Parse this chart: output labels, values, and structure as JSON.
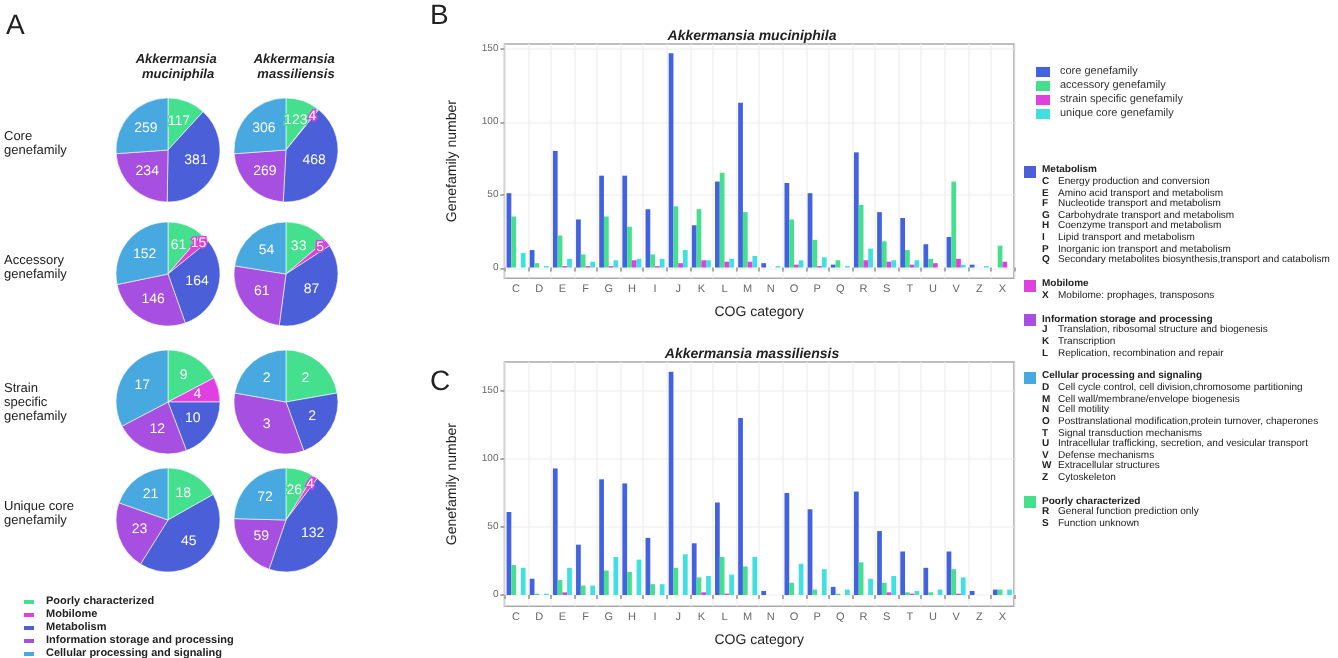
{
  "chart_data": [
    {
      "type": "pie",
      "title": "Akkermansia muciniphila",
      "annotations": [
        "A",
        "Core genefamily"
      ],
      "categories": [
        null,
        null,
        null,
        null,
        null
      ],
      "values": [
        117,
        null,
        381,
        234,
        259
      ],
      "colors": [
        "#44e08e",
        null,
        "#4a5fd8",
        "#a64fe0",
        "#48a8e0"
      ],
      "data_labels": true
    },
    {
      "type": "pie",
      "title": "Akkermansia massiliensis",
      "categories": [
        null,
        null,
        null,
        null,
        null
      ],
      "values": [
        123,
        4,
        468,
        269,
        306
      ],
      "colors": [
        "#44e08e",
        "#e040e0",
        "#4a5fd8",
        "#a64fe0",
        "#48a8e0"
      ],
      "data_labels": true
    },
    {
      "type": "pie",
      "annotations": [
        "Accessory genefamily"
      ],
      "categories": [
        null,
        null,
        null,
        null,
        null
      ],
      "values": [
        61,
        15,
        164,
        146,
        152
      ],
      "colors": [
        "#44e08e",
        "#e040e0",
        "#4a5fd8",
        "#a64fe0",
        "#48a8e0"
      ],
      "data_labels": true
    },
    {
      "type": "pie",
      "categories": [
        null,
        null,
        null,
        null,
        null
      ],
      "values": [
        33,
        5,
        87,
        61,
        54
      ],
      "colors": [
        "#44e08e",
        "#e040e0",
        "#4a5fd8",
        "#a64fe0",
        "#48a8e0"
      ],
      "data_labels": true
    },
    {
      "type": "pie",
      "annotations": [
        "Strain specific genefamily"
      ],
      "categories": [
        null,
        null,
        null,
        null,
        null
      ],
      "values": [
        9,
        4,
        10,
        12,
        17
      ],
      "colors": [
        "#44e08e",
        "#e040e0",
        "#4a5fd8",
        "#a64fe0",
        "#48a8e0"
      ],
      "data_labels": true
    },
    {
      "type": "pie",
      "categories": [
        null,
        null,
        null,
        null,
        null
      ],
      "values": [
        2,
        null,
        2,
        3,
        2
      ],
      "colors": [
        "#44e08e",
        null,
        "#4a5fd8",
        "#a64fe0",
        "#48a8e0"
      ],
      "data_labels": true
    },
    {
      "type": "pie",
      "annotations": [
        "Unique core genefamily"
      ],
      "categories": [
        null,
        null,
        null,
        null,
        null
      ],
      "values": [
        18,
        null,
        45,
        23,
        21
      ],
      "colors": [
        "#44e08e",
        null,
        "#4a5fd8",
        "#a64fe0",
        "#48a8e0"
      ],
      "data_labels": true
    },
    {
      "type": "pie",
      "categories": [
        "Poorly characterized",
        "Mobilome",
        "Metabolism",
        "Information storage and processing",
        "Cellular processing and signaling"
      ],
      "values": [
        26,
        4,
        132,
        59,
        72
      ],
      "colors": [
        "#44e08e",
        "#e040e0",
        "#4a5fd8",
        "#a64fe0",
        "#48a8e0"
      ],
      "data_labels": true,
      "legend": "bottom left"
    },
    {
      "type": "bar",
      "title": "Akkermansia muciniphila",
      "annotations": [
        "B"
      ],
      "xlabel": "COG category",
      "ylabel": "Genefamily number",
      "categories": [
        "C",
        "D",
        "E",
        "F",
        "G",
        "H",
        "I",
        "J",
        "K",
        "L",
        "M",
        "N",
        "O",
        "P",
        "Q",
        "R",
        "S",
        "T",
        "U",
        "V",
        "Z",
        "X"
      ],
      "series": [
        {
          "name": "core genefamily",
          "color": "#4262e0",
          "values": [
            51,
            12,
            80,
            33,
            63,
            63,
            40,
            147,
            29,
            59,
            113,
            3,
            58,
            51,
            2,
            79,
            38,
            34,
            16,
            21,
            2,
            0
          ]
        },
        {
          "name": "accessory genefamily",
          "color": "#44e08e",
          "values": [
            35,
            3,
            22,
            9,
            35,
            28,
            9,
            42,
            40,
            65,
            38,
            0,
            33,
            19,
            5,
            43,
            18,
            12,
            6,
            59,
            0,
            15
          ]
        },
        {
          "name": "strain specific genefamily",
          "color": "#e040e0",
          "values": [
            0,
            0,
            1,
            1,
            1,
            5,
            1,
            3,
            5,
            4,
            4,
            0,
            2,
            1,
            0,
            5,
            4,
            2,
            3,
            6,
            0,
            4
          ]
        },
        {
          "name": "unique core genefamily",
          "color": "#40e0e0",
          "values": [
            10,
            1,
            6,
            4,
            5,
            6,
            6,
            12,
            5,
            6,
            8,
            1,
            5,
            7,
            1,
            13,
            5,
            5,
            0,
            2,
            1,
            0
          ]
        }
      ],
      "ylim": [
        -7.3,
        153.3
      ],
      "yticks": [
        0,
        50,
        100,
        150
      ],
      "grid": true,
      "legend": "right"
    },
    {
      "type": "bar",
      "title": "Akkermansia massiliensis",
      "annotations": [
        "C"
      ],
      "xlabel": "COG category",
      "ylabel": "Genefamily number",
      "categories": [
        "C",
        "D",
        "E",
        "F",
        "G",
        "H",
        "I",
        "J",
        "K",
        "L",
        "M",
        "N",
        "O",
        "P",
        "Q",
        "R",
        "S",
        "T",
        "U",
        "V",
        "Z",
        "X"
      ],
      "series": [
        {
          "name": "core genefamily",
          "color": "#4262e0",
          "values": [
            61,
            12,
            93,
            37,
            85,
            82,
            42,
            164,
            38,
            68,
            130,
            3,
            75,
            63,
            6,
            76,
            47,
            32,
            20,
            32,
            3,
            4
          ]
        },
        {
          "name": "accessory genefamily",
          "color": "#44e08e",
          "values": [
            22,
            1,
            11,
            7,
            18,
            17,
            8,
            20,
            13,
            28,
            21,
            0,
            9,
            4,
            1,
            24,
            9,
            2,
            2,
            19,
            0,
            4
          ]
        },
        {
          "name": "strain specific genefamily",
          "color": "#e040e0",
          "values": [
            0,
            0,
            2,
            0,
            0,
            0,
            0,
            0,
            2,
            1,
            0,
            0,
            0,
            0,
            0,
            0,
            2,
            1,
            0,
            1,
            0,
            0
          ]
        },
        {
          "name": "unique core genefamily",
          "color": "#40e0e0",
          "values": [
            20,
            1,
            20,
            7,
            28,
            26,
            8,
            30,
            14,
            15,
            28,
            0,
            23,
            19,
            4,
            12,
            14,
            3,
            4,
            13,
            0,
            4
          ]
        }
      ],
      "ylim": [
        -8.2,
        171.2
      ],
      "yticks": [
        0,
        50,
        100,
        150
      ],
      "grid": true
    },
    {
      "type": "other",
      "annotations": [
        "Metabolism",
        "C Energy production and conversion",
        "E Amino acid transport and metabolism",
        "F Nucleotide transport and metabolism",
        "G Carbohydrate transport and metabolism",
        "H Coenzyme transport and metabolism",
        "I Lipid transport and metabolism",
        "P Inorganic ion transport and metabolism",
        "Q Secondary metabolites biosynthesis,transport and catabolism",
        "Mobilome",
        "X Mobilome: prophages, transposons",
        "Information storage and processing",
        "J Translation, ribosomal structure and biogenesis",
        "K Transcription",
        "L Replication, recombination and repair",
        "Cellular processing and signaling",
        "D Cell cycle control, cell division,chromosome partitioning",
        "M Cell wall/membrane/envelope biogenesis",
        "N Cell motility",
        "O Posttranslational modification,protein turnover, chaperones",
        "T Signal transduction mechanisms",
        "U Intracellular trafficking, secretion, and vesicular transport",
        "V Defense mechanisms",
        "W Extracellular structures",
        "Z Cytoskeleton",
        "Poorly characterized",
        "R General function prediction only",
        "S Function unknown"
      ],
      "colors": [
        "#4a5fd8",
        null,
        null,
        null,
        null,
        null,
        null,
        null,
        null,
        "#e040e0",
        null,
        "#a64fe0",
        null,
        null,
        null,
        "#48a8e0",
        null,
        null,
        null,
        null,
        null,
        null,
        null,
        null,
        null,
        "#44e08e",
        null,
        null
      ]
    }
  ]
}
